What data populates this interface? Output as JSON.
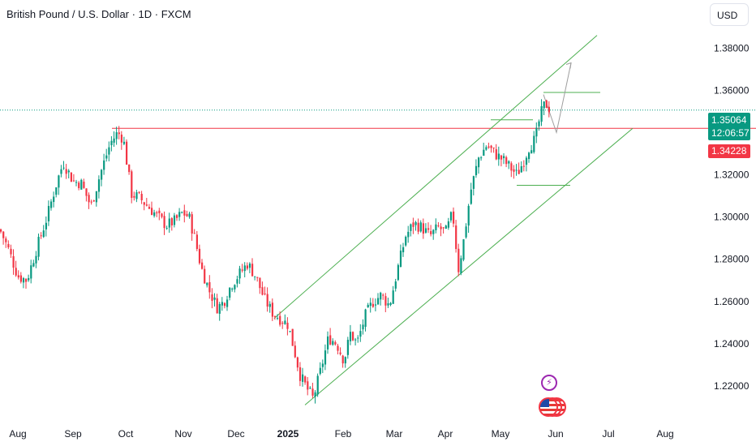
{
  "header": {
    "title": "British Pound / U.S. Dollar · 1D · FXCM",
    "currency_label": "USD"
  },
  "price_tags": {
    "current_price": "1.35064",
    "countdown": "12:06:57",
    "level_price": "1.34228"
  },
  "colors": {
    "up": "#089981",
    "down": "#f23645",
    "channel": "#4caf50",
    "resistance": "#f23645",
    "current_line": "#089981",
    "axis_text": "#131722"
  },
  "icons": {
    "event": "flash-icon",
    "country": "us-flag-icon"
  },
  "chart_data": {
    "type": "candlestick",
    "title": "British Pound / U.S. Dollar · 1D · FXCM",
    "xlabel": "",
    "ylabel": "",
    "ylim": [
      1.205,
      1.392
    ],
    "x_tick_labels": [
      "Aug",
      "Sep",
      "Oct",
      "Nov",
      "Dec",
      "2025",
      "Feb",
      "Mar",
      "Apr",
      "May",
      "Jun",
      "Jul",
      "Aug"
    ],
    "y_tick_labels": [
      "1.38000",
      "1.36000",
      "1.34000",
      "1.32000",
      "1.30000",
      "1.28000",
      "1.26000",
      "1.24000",
      "1.22000"
    ],
    "y_ticks": [
      1.38,
      1.36,
      1.34,
      1.32,
      1.3,
      1.28,
      1.26,
      1.24,
      1.22
    ],
    "current_price": 1.35064,
    "level_price": 1.34228,
    "close_path": [
      [
        0,
        1.294
      ],
      [
        10,
        1.285
      ],
      [
        22,
        1.272
      ],
      [
        33,
        1.27
      ],
      [
        45,
        1.285
      ],
      [
        58,
        1.3
      ],
      [
        68,
        1.314
      ],
      [
        78,
        1.326
      ],
      [
        90,
        1.317
      ],
      [
        100,
        1.316
      ],
      [
        112,
        1.305
      ],
      [
        124,
        1.321
      ],
      [
        136,
        1.335
      ],
      [
        145,
        1.34
      ],
      [
        152,
        1.337
      ],
      [
        162,
        1.311
      ],
      [
        172,
        1.309
      ],
      [
        185,
        1.304
      ],
      [
        195,
        1.3
      ],
      [
        205,
        1.296
      ],
      [
        215,
        1.298
      ],
      [
        225,
        1.302
      ],
      [
        233,
        1.3
      ],
      [
        240,
        1.29
      ],
      [
        248,
        1.276
      ],
      [
        258,
        1.265
      ],
      [
        268,
        1.257
      ],
      [
        276,
        1.26
      ],
      [
        285,
        1.268
      ],
      [
        295,
        1.273
      ],
      [
        305,
        1.278
      ],
      [
        315,
        1.272
      ],
      [
        325,
        1.262
      ],
      [
        335,
        1.255
      ],
      [
        345,
        1.252
      ],
      [
        355,
        1.249
      ],
      [
        362,
        1.238
      ],
      [
        370,
        1.225
      ],
      [
        378,
        1.219
      ],
      [
        386,
        1.214
      ],
      [
        395,
        1.227
      ],
      [
        405,
        1.243
      ],
      [
        415,
        1.24
      ],
      [
        424,
        1.232
      ],
      [
        432,
        1.245
      ],
      [
        440,
        1.24
      ],
      [
        450,
        1.253
      ],
      [
        460,
        1.26
      ],
      [
        470,
        1.263
      ],
      [
        480,
        1.258
      ],
      [
        490,
        1.275
      ],
      [
        500,
        1.291
      ],
      [
        510,
        1.297
      ],
      [
        520,
        1.295
      ],
      [
        530,
        1.291
      ],
      [
        540,
        1.295
      ],
      [
        550,
        1.293
      ],
      [
        558,
        1.302
      ],
      [
        565,
        1.275
      ],
      [
        572,
        1.29
      ],
      [
        580,
        1.312
      ],
      [
        590,
        1.328
      ],
      [
        600,
        1.334
      ],
      [
        610,
        1.33
      ],
      [
        620,
        1.327
      ],
      [
        630,
        1.323
      ],
      [
        637,
        1.32
      ],
      [
        645,
        1.326
      ],
      [
        652,
        1.333
      ],
      [
        660,
        1.337
      ],
      [
        666,
        1.348
      ],
      [
        672,
        1.354
      ],
      [
        678,
        1.351
      ]
    ],
    "annotations": {
      "channel_upper": [
        [
          338,
          1.252
        ],
        [
          736,
          1.386
        ]
      ],
      "channel_lower": [
        [
          376,
          1.211
        ],
        [
          780,
          1.342
        ]
      ],
      "resistance": [
        [
          138,
          1.342
        ],
        [
          932,
          1.342
        ]
      ],
      "range_high": [
        [
          670,
          1.359
        ],
        [
          740,
          1.359
        ]
      ],
      "range_low": [
        [
          637,
          1.315
        ],
        [
          703,
          1.315
        ]
      ],
      "breakout_box": [
        [
          605,
          1.346
        ],
        [
          657,
          1.346
        ]
      ],
      "projection": [
        [
          670,
          1.358
        ],
        [
          686,
          1.34
        ],
        [
          704,
          1.373
        ]
      ]
    }
  }
}
